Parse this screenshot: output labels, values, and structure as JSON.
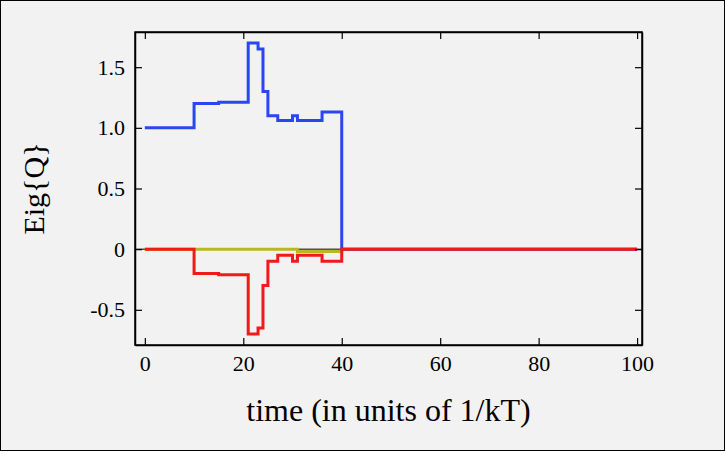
{
  "chart_data": {
    "type": "line",
    "x_label": "time (in units of 1/kT)",
    "y_label": "Eig{Q}",
    "x": [
      0,
      10,
      15,
      21,
      23,
      24,
      25,
      27,
      30,
      31,
      36,
      40,
      100
    ],
    "series": [
      {
        "color": "#b8b820",
        "line_style": "step",
        "values": [
          0,
          0,
          0,
          0,
          0,
          0,
          0,
          0,
          0,
          -0.02,
          -0.02,
          0,
          0
        ]
      },
      {
        "color": "#2a46f0",
        "line_style": "step",
        "values": [
          1.0,
          1.2,
          1.21,
          1.7,
          1.65,
          1.3,
          1.1,
          1.06,
          1.1,
          1.06,
          1.13,
          0,
          0
        ]
      },
      {
        "color": "#f01a1a",
        "line_style": "step",
        "values": [
          0,
          -0.2,
          -0.21,
          -0.7,
          -0.65,
          -0.3,
          -0.1,
          -0.05,
          -0.1,
          -0.05,
          -0.1,
          0,
          0
        ]
      }
    ],
    "xlim": [
      -2,
      101
    ],
    "xticks": [
      0,
      20,
      40,
      60,
      80,
      100
    ],
    "ylim": [
      -0.79,
      1.79
    ],
    "yticks": [
      -0.5,
      0,
      0.5,
      {
        "value": 1,
        "label": "1.0"
      },
      1.5
    ],
    "grid": false
  }
}
